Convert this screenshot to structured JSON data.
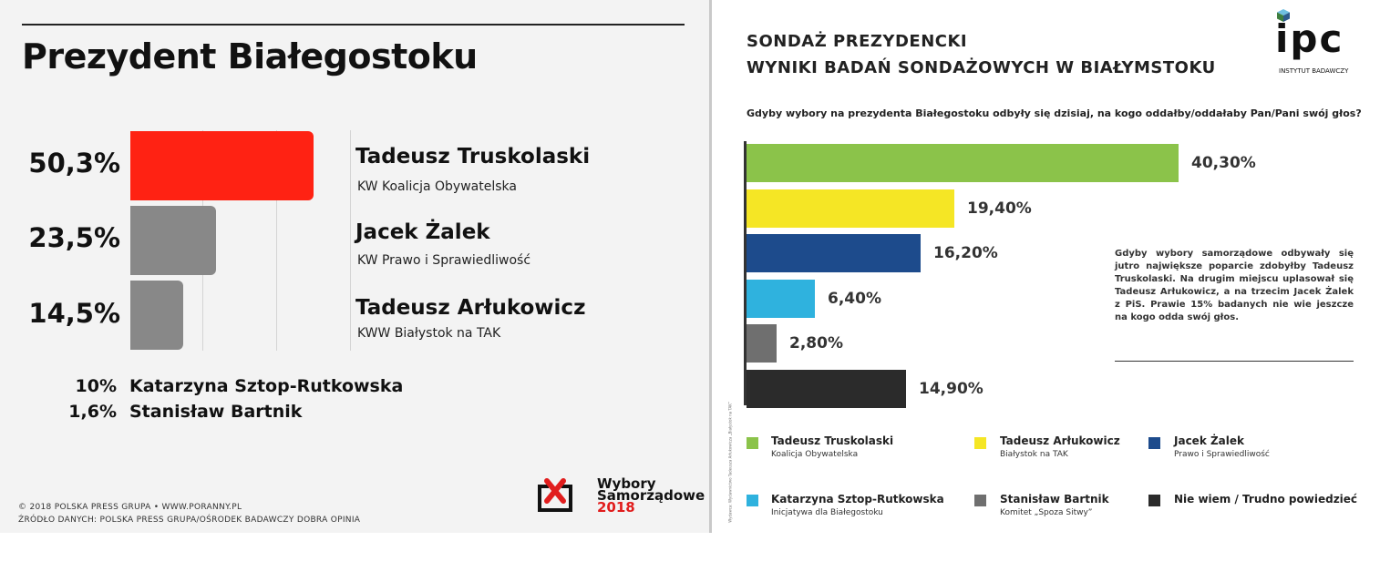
{
  "chart_data": [
    {
      "type": "bar",
      "orientation": "horizontal",
      "title": "Prezydent Białegostoku",
      "series": [
        {
          "candidate": "Tadeusz Truskolaski",
          "party": "KW Koalicja Obywatelska",
          "value": 50.3,
          "label": "50,3%",
          "color": "#ff2213"
        },
        {
          "candidate": "Jacek Żalek",
          "party": "KW Prawo i Sprawiedliwość",
          "value": 23.5,
          "label": "23,5%",
          "color": "#888888"
        },
        {
          "candidate": "Tadeusz Arłukowicz",
          "party": "KWW Białystok na TAK",
          "value": 14.5,
          "label": "14,5%",
          "color": "#888888"
        }
      ],
      "others": [
        {
          "label": "10%",
          "candidate": "Katarzyna Sztop-Rutkowska",
          "value": 10
        },
        {
          "label": "1,6%",
          "candidate": "Stanisław Bartnik",
          "value": 1.6
        }
      ],
      "grid": true,
      "footer": [
        "© 2018 POLSKA PRESS GRUPA  •  WWW.PORANNY.PL",
        "ŹRÓDŁO DANYCH: POLSKA PRESS GRUPA/OŚRODEK BADAWCZY DOBRA OPINIA"
      ],
      "logo": {
        "line1": "Wybory",
        "line2": "Samorządowe",
        "year": "2018"
      }
    },
    {
      "type": "bar",
      "orientation": "horizontal",
      "title": "SONDAŻ PREZYDENCKI",
      "subtitle": "WYNIKI BADAŃ SONDAŻOWYCH W BIAŁYMSTOKU",
      "question": "Gdyby wybory na prezydenta Białegostoku odbyły się dzisiaj, na kogo oddałby/oddałaby Pan/Pani swój głos?",
      "values": [
        40.3,
        19.4,
        16.2,
        6.4,
        2.8,
        14.9
      ],
      "labels": [
        "40,30%",
        "19,40%",
        "16,20%",
        "6,40%",
        "2,80%",
        "14,90%"
      ],
      "colors": [
        "#8bc34a",
        "#f5e625",
        "#1d4b8c",
        "#2fb2de",
        "#6f6f6f",
        "#2b2b2b"
      ],
      "legend": [
        {
          "name": "Tadeusz Truskolaski",
          "party": "Koalicja Obywatelska",
          "color": "#8bc34a"
        },
        {
          "name": "Tadeusz Arłukowicz",
          "party": "Białystok na TAK",
          "color": "#f5e625"
        },
        {
          "name": "Jacek Żalek",
          "party": "Prawo i Sprawiedliwość",
          "color": "#1d4b8c"
        },
        {
          "name": "Katarzyna Sztop-Rutkowska",
          "party": "Inicjatywa dla Białegostoku",
          "color": "#2fb2de"
        },
        {
          "name": "Stanisław Bartnik",
          "party": "Komitet „Spoza Sitwy”",
          "color": "#6f6f6f"
        },
        {
          "name": "Nie wiem / Trudno powiedzieć",
          "party": "",
          "color": "#2b2b2b"
        }
      ],
      "note": "Gdyby wybory samorządowe odbywały się jutro największe poparcie zdobyłby Tadeusz Truskolaski. Na drugim miejscu uplasował się Tadeusz Arłukowicz, a na trzecim Jacek Żalek z PiS. Prawie 15% badanych nie wie jeszcze na kogo odda swój głos.",
      "brand": {
        "name": "ipc",
        "sub": "INSTYTUT BADAWCZY"
      },
      "vertical_caption": "Wydawca: Wydawnictwo Tadeusza Arłukowicza „Białystok na TAK”"
    }
  ]
}
